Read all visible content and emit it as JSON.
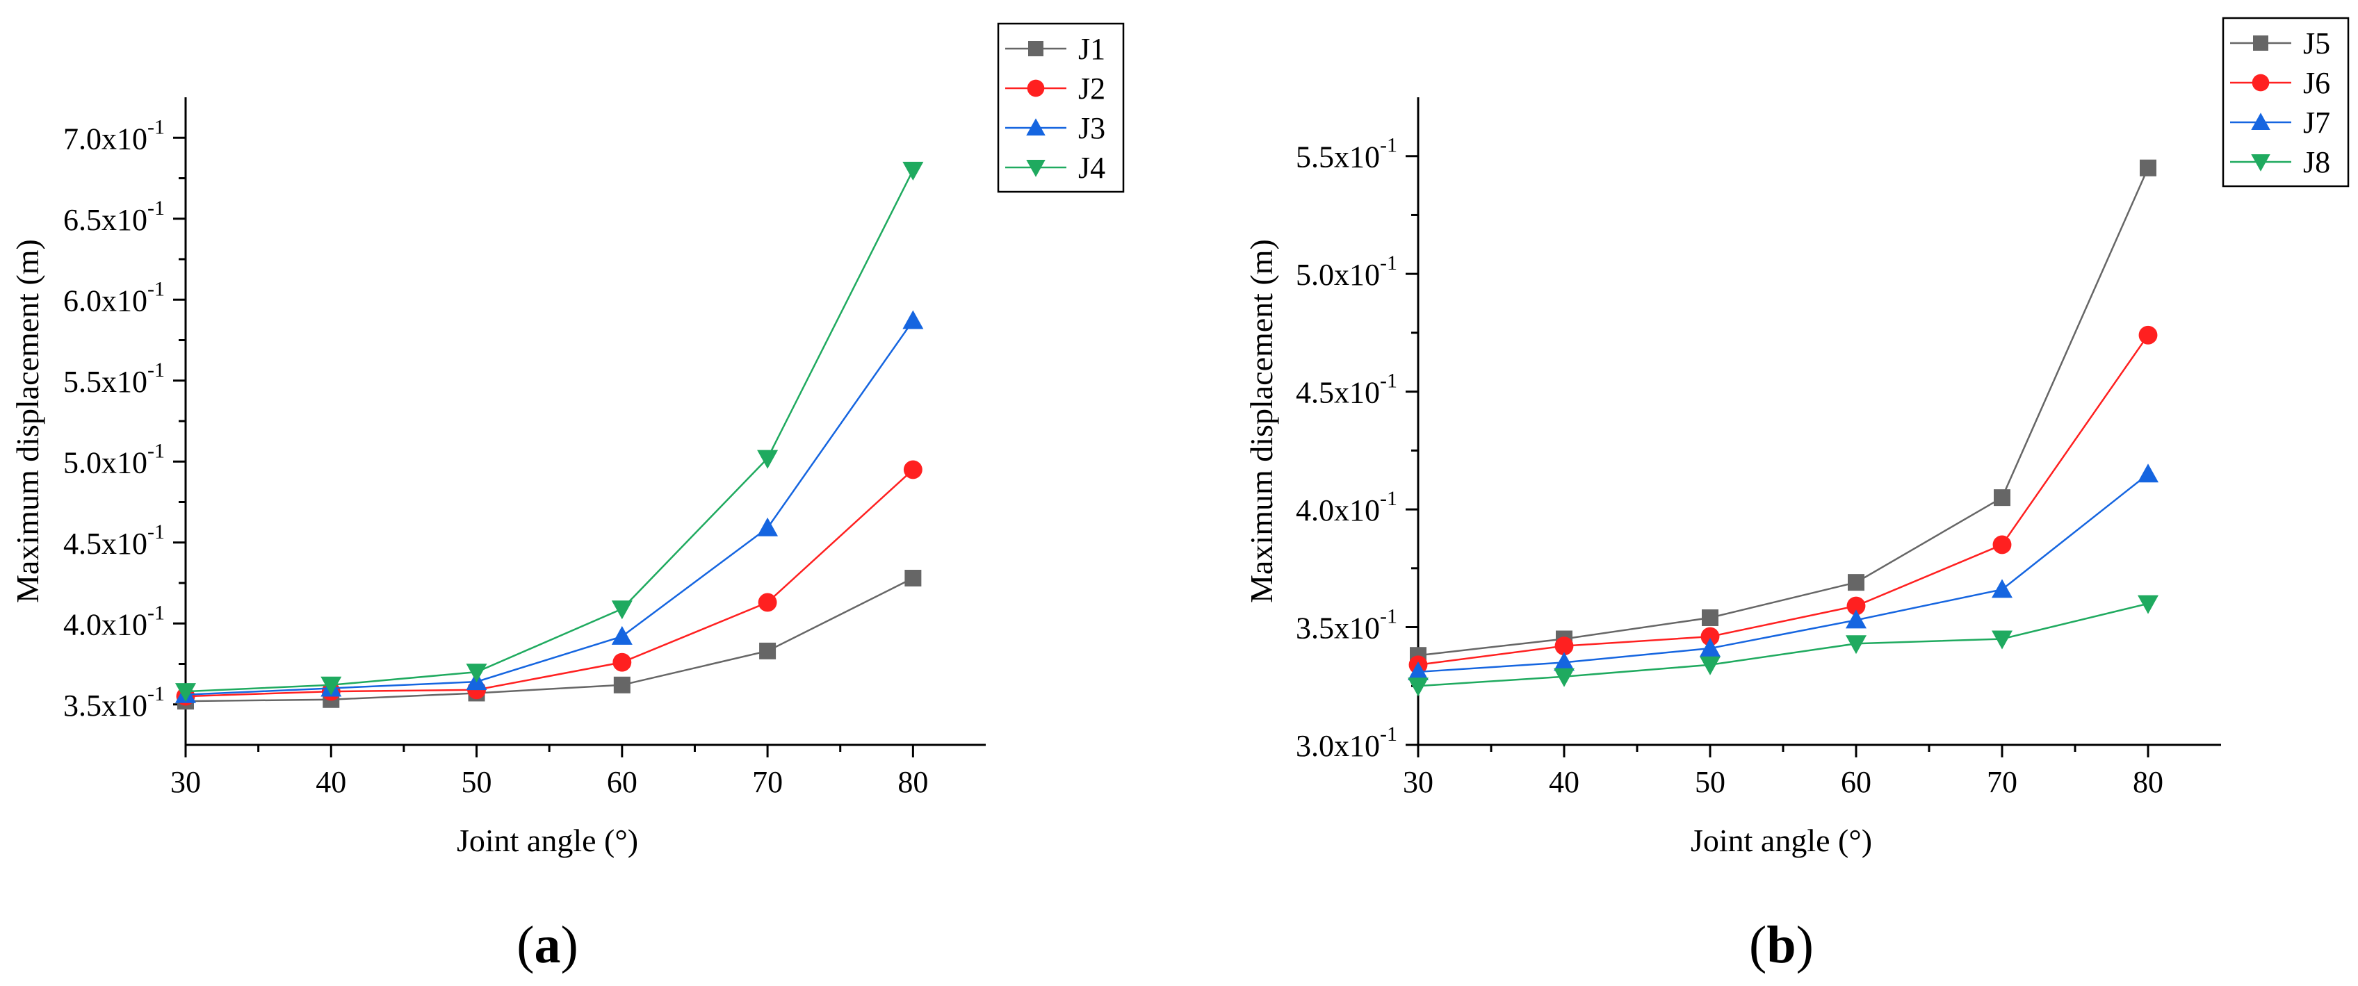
{
  "chart_data": [
    {
      "type": "line",
      "panel_label": "a",
      "xlabel": "Joint angle (°)",
      "ylabel": "Maximum displacement (m)",
      "x": [
        30,
        40,
        50,
        60,
        70,
        80
      ],
      "xlim": [
        30,
        85
      ],
      "ylim": [
        0.325,
        0.725
      ],
      "xticks": [
        30,
        40,
        50,
        60,
        70,
        80
      ],
      "xtick_labels": [
        "30",
        "40",
        "50",
        "60",
        "70",
        "80"
      ],
      "yticks": [
        0.35,
        0.4,
        0.45,
        0.5,
        0.55,
        0.6,
        0.65,
        0.7
      ],
      "ytick_mantissas": [
        "3.5x10",
        "4.0x10",
        "4.5x10",
        "5.0x10",
        "5.5x10",
        "6.0x10",
        "6.5x10",
        "7.0x10"
      ],
      "ytick_exponent": "-1",
      "legend_position": "top-right",
      "series": [
        {
          "name": "J1",
          "color": "#666666",
          "marker": "square",
          "values": [
            0.352,
            0.353,
            0.357,
            0.362,
            0.383,
            0.428
          ]
        },
        {
          "name": "J2",
          "color": "#ff2020",
          "marker": "circle",
          "values": [
            0.355,
            0.358,
            0.359,
            0.376,
            0.413,
            0.495
          ]
        },
        {
          "name": "J3",
          "color": "#1565e0",
          "marker": "triangle-up",
          "values": [
            0.356,
            0.36,
            0.364,
            0.392,
            0.459,
            0.587
          ]
        },
        {
          "name": "J4",
          "color": "#1faa5f",
          "marker": "triangle-down",
          "values": [
            0.358,
            0.362,
            0.37,
            0.409,
            0.502,
            0.68
          ]
        }
      ]
    },
    {
      "type": "line",
      "panel_label": "b",
      "xlabel": "Joint angle (°)",
      "ylabel": "Maximum displacement (m)",
      "x": [
        30,
        40,
        50,
        60,
        70,
        80
      ],
      "xlim": [
        30,
        85
      ],
      "ylim": [
        0.3,
        0.575
      ],
      "xticks": [
        30,
        40,
        50,
        60,
        70,
        80
      ],
      "xtick_labels": [
        "30",
        "40",
        "50",
        "60",
        "70",
        "80"
      ],
      "yticks": [
        0.3,
        0.35,
        0.4,
        0.45,
        0.5,
        0.55
      ],
      "ytick_mantissas": [
        "3.0x10",
        "3.5x10",
        "4.0x10",
        "4.5x10",
        "5.0x10",
        "5.5x10"
      ],
      "ytick_exponent": "-1",
      "legend_position": "top-right",
      "series": [
        {
          "name": "J5",
          "color": "#666666",
          "marker": "square",
          "values": [
            0.338,
            0.345,
            0.354,
            0.369,
            0.405,
            0.545
          ]
        },
        {
          "name": "J6",
          "color": "#ff2020",
          "marker": "circle",
          "values": [
            0.334,
            0.342,
            0.346,
            0.359,
            0.385,
            0.474
          ]
        },
        {
          "name": "J7",
          "color": "#1565e0",
          "marker": "triangle-up",
          "values": [
            0.331,
            0.335,
            0.341,
            0.353,
            0.366,
            0.415
          ]
        },
        {
          "name": "J8",
          "color": "#1faa5f",
          "marker": "triangle-down",
          "values": [
            0.325,
            0.329,
            0.334,
            0.343,
            0.345,
            0.36
          ]
        }
      ]
    }
  ]
}
